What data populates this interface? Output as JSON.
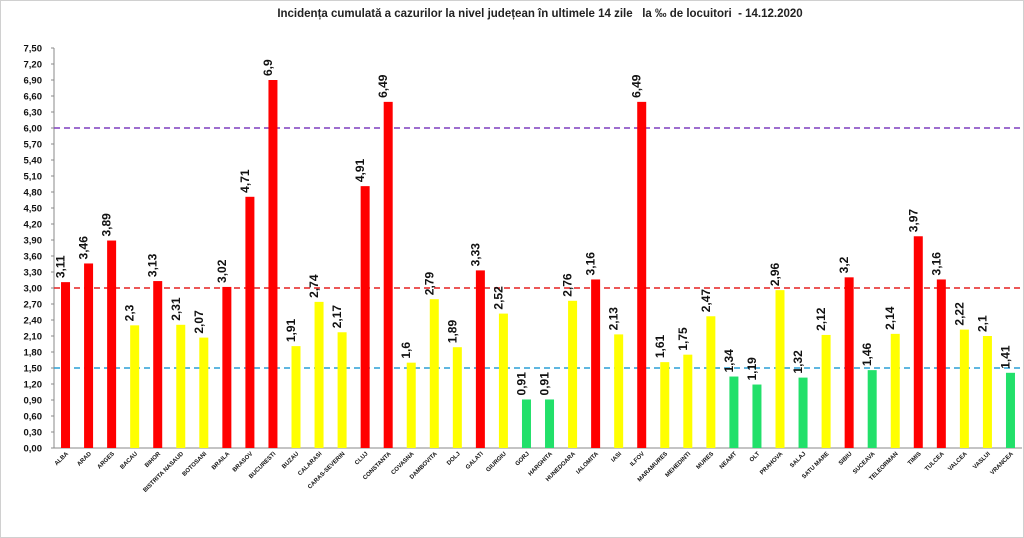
{
  "chart_data": {
    "type": "bar",
    "title": "Incidența cumulată a cazurilor la nivel județean în ultimele 14 zile   la ‰ de locuitori  - 14.12.2020",
    "ylim": [
      0,
      7.5
    ],
    "y_ticks": [
      "0,00",
      "0,30",
      "0,60",
      "0,90",
      "1,20",
      "1,50",
      "1,80",
      "2,10",
      "2,40",
      "2,70",
      "3,00",
      "3,30",
      "3,60",
      "3,90",
      "4,20",
      "4,50",
      "4,80",
      "5,10",
      "5,40",
      "5,70",
      "6,00",
      "6,30",
      "6,60",
      "6,90",
      "7,20",
      "7,50"
    ],
    "grid": false,
    "categories": [
      "ALBA",
      "ARAD",
      "ARGES",
      "BACAU",
      "BIHOR",
      "BISTRITA NASAUD",
      "BOTOSANI",
      "BRAILA",
      "BRASOV",
      "BUCURESTI",
      "BUZAU",
      "CALARASI",
      "CARAS-SEVERIN",
      "CLUJ",
      "CONSTANTA",
      "COVASNA",
      "DAMBOVITA",
      "DOLJ",
      "GALATI",
      "GIURGIU",
      "GORJ",
      "HARGHITA",
      "HUNEDOARA",
      "IALOMITA",
      "IASI",
      "ILFOV",
      "MARAMURES",
      "MEHEDINTI",
      "MURES",
      "NEAMT",
      "OLT",
      "PRAHOVA",
      "SALAJ",
      "SATU MARE",
      "SIBIU",
      "SUCEAVA",
      "TELEORMAN",
      "TIMIS",
      "TULCEA",
      "VALCEA",
      "VASLUI",
      "VRANCEA"
    ],
    "values": [
      3.11,
      3.46,
      3.89,
      2.3,
      3.13,
      2.31,
      2.07,
      3.02,
      4.71,
      6.9,
      1.91,
      2.74,
      2.17,
      4.91,
      6.49,
      1.6,
      2.79,
      1.89,
      3.33,
      2.52,
      0.91,
      0.91,
      2.76,
      3.16,
      2.13,
      6.49,
      1.61,
      1.75,
      2.47,
      1.34,
      1.19,
      2.96,
      1.32,
      2.12,
      3.2,
      1.46,
      2.14,
      3.97,
      3.16,
      2.22,
      2.1,
      1.41
    ],
    "value_labels": [
      "3,11",
      "3,46",
      "3,89",
      "2,3",
      "3,13",
      "2,31",
      "2,07",
      "3,02",
      "4,71",
      "6,9",
      "1,91",
      "2,74",
      "2,17",
      "4,91",
      "6,49",
      "1,6",
      "2,79",
      "1,89",
      "3,33",
      "2,52",
      "0,91",
      "0,91",
      "2,76",
      "3,16",
      "2,13",
      "6,49",
      "1,61",
      "1,75",
      "2,47",
      "1,34",
      "1,19",
      "2,96",
      "1,32",
      "2,12",
      "3,2",
      "1,46",
      "2,14",
      "3,97",
      "3,16",
      "2,22",
      "2,1",
      "1,41"
    ],
    "bar_colors": [
      "red",
      "red",
      "red",
      "yellow",
      "red",
      "yellow",
      "yellow",
      "red",
      "red",
      "red",
      "yellow",
      "yellow",
      "yellow",
      "red",
      "red",
      "yellow",
      "yellow",
      "yellow",
      "red",
      "yellow",
      "green",
      "green",
      "yellow",
      "red",
      "yellow",
      "red",
      "yellow",
      "yellow",
      "yellow",
      "green",
      "green",
      "yellow",
      "green",
      "yellow",
      "red",
      "green",
      "yellow",
      "red",
      "red",
      "yellow",
      "yellow",
      "green"
    ],
    "reference_lines": [
      {
        "value": 6.0,
        "color": "#7f3fbf"
      },
      {
        "value": 3.0,
        "color": "#e52020"
      },
      {
        "value": 1.5,
        "color": "#2a9fd6"
      }
    ],
    "colors": {
      "red": "#ff0000",
      "yellow": "#ffff00",
      "green": "#22e06a"
    }
  }
}
